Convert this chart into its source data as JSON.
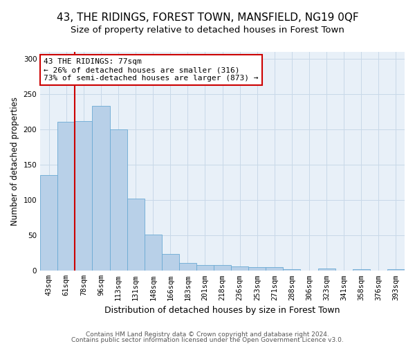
{
  "title": "43, THE RIDINGS, FOREST TOWN, MANSFIELD, NG19 0QF",
  "subtitle": "Size of property relative to detached houses in Forest Town",
  "xlabel": "Distribution of detached houses by size in Forest Town",
  "ylabel": "Number of detached properties",
  "footnote1": "Contains HM Land Registry data © Crown copyright and database right 2024.",
  "footnote2": "Contains public sector information licensed under the Open Government Licence v3.0.",
  "categories": [
    "43sqm",
    "61sqm",
    "78sqm",
    "96sqm",
    "113sqm",
    "131sqm",
    "148sqm",
    "166sqm",
    "183sqm",
    "201sqm",
    "218sqm",
    "236sqm",
    "253sqm",
    "271sqm",
    "288sqm",
    "306sqm",
    "323sqm",
    "341sqm",
    "358sqm",
    "376sqm",
    "393sqm"
  ],
  "values": [
    136,
    211,
    212,
    234,
    200,
    102,
    51,
    24,
    11,
    8,
    8,
    6,
    5,
    5,
    2,
    0,
    3,
    0,
    2,
    0,
    2
  ],
  "bar_color": "#b8d0e8",
  "bar_edge_color": "#6aaad4",
  "marker_line_color": "#cc0000",
  "annotation_line1": "43 THE RIDINGS: 77sqm",
  "annotation_line2": "← 26% of detached houses are smaller (316)",
  "annotation_line3": "73% of semi-detached houses are larger (873) →",
  "annotation_box_color": "#ffffff",
  "annotation_box_edge": "#cc0000",
  "ylim": [
    0,
    310
  ],
  "yticks": [
    0,
    50,
    100,
    150,
    200,
    250,
    300
  ],
  "grid_color": "#c8d8e8",
  "bg_color": "#e8f0f8",
  "title_fontsize": 11,
  "subtitle_fontsize": 9.5,
  "tick_fontsize": 7.5,
  "ylabel_fontsize": 8.5,
  "xlabel_fontsize": 9,
  "footnote_fontsize": 6.5
}
